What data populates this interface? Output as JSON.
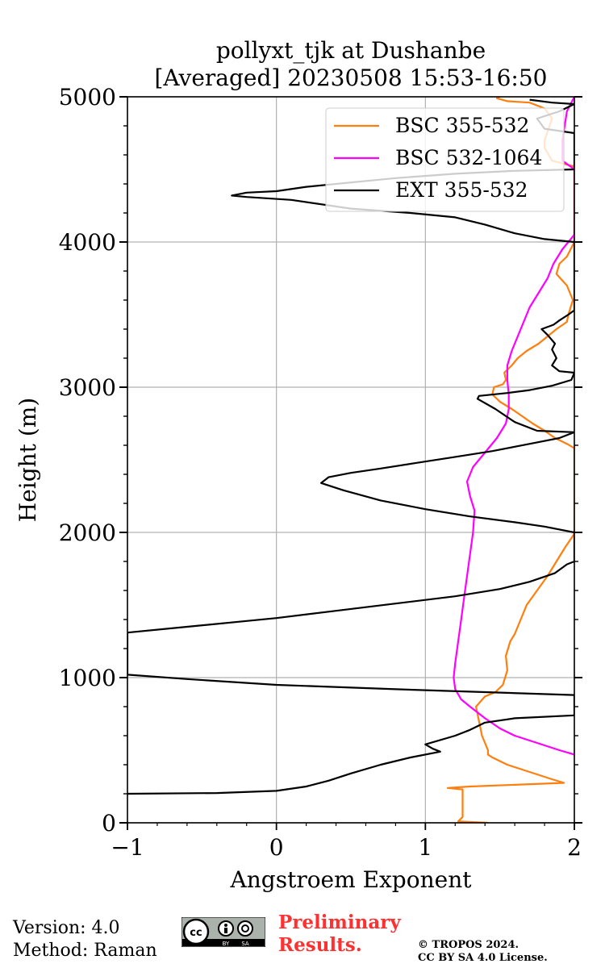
{
  "colors": {
    "bsc_355_532": "#ff7f0e",
    "bsc_532_1064": "#ff00ff",
    "ext_355_532": "#000000",
    "grid": "#b0b0b0",
    "preliminary": "#ff3030"
  },
  "footer": {
    "version": "Version: 4.0",
    "method": "Method: Raman",
    "preliminary_line1": "Preliminary",
    "preliminary_line2": "Results.",
    "copyright_line1": "© TROPOS 2024.",
    "copyright_line2": "CC BY SA 4.0 License.",
    "license_badge": {
      "cc": "cc",
      "by": "BY",
      "sa": "SA"
    }
  },
  "chart_data": {
    "type": "line",
    "title_line1": "pollyxt_tjk at Dushanbe",
    "title_line2": "[Averaged] 20230508 15:53-16:50",
    "xlabel": "Angstroem Exponent",
    "ylabel": "Height (m)",
    "xlim": [
      -1,
      2
    ],
    "ylim": [
      0,
      5000
    ],
    "xticks": [
      -1,
      0,
      1,
      2
    ],
    "xtick_labels": [
      "−1",
      "0",
      "1",
      "2"
    ],
    "yticks": [
      0,
      1000,
      2000,
      3000,
      4000,
      5000
    ],
    "ytick_labels": [
      "0",
      "1000",
      "2000",
      "3000",
      "4000",
      "5000"
    ],
    "grid": true,
    "legend_position": "top-right",
    "series": [
      {
        "name": "BSC 355-532",
        "color_key": "bsc_355_532",
        "points": [
          [
            1.42,
            0
          ],
          [
            1.22,
            10
          ],
          [
            1.25,
            40
          ],
          [
            1.25,
            130
          ],
          [
            1.25,
            230
          ],
          [
            1.15,
            240
          ],
          [
            1.3,
            250
          ],
          [
            1.93,
            275
          ],
          [
            1.85,
            300
          ],
          [
            1.7,
            350
          ],
          [
            1.55,
            400
          ],
          [
            1.45,
            450
          ],
          [
            1.42,
            470
          ],
          [
            1.42,
            500
          ],
          [
            1.4,
            550
          ],
          [
            1.38,
            600
          ],
          [
            1.36,
            700
          ],
          [
            1.34,
            800
          ],
          [
            1.4,
            870
          ],
          [
            1.47,
            900
          ],
          [
            1.52,
            950
          ],
          [
            1.55,
            1050
          ],
          [
            1.54,
            1150
          ],
          [
            1.57,
            1250
          ],
          [
            1.6,
            1300
          ],
          [
            1.64,
            1400
          ],
          [
            1.68,
            1500
          ],
          [
            1.75,
            1600
          ],
          [
            1.82,
            1700
          ],
          [
            1.88,
            1800
          ],
          [
            1.94,
            1900
          ],
          [
            2.0,
            1990
          ],
          [
            2.0,
            2580
          ],
          [
            1.95,
            2610
          ],
          [
            1.87,
            2650
          ],
          [
            1.8,
            2700
          ],
          [
            1.72,
            2750
          ],
          [
            1.65,
            2800
          ],
          [
            1.58,
            2850
          ],
          [
            1.5,
            2900
          ],
          [
            1.45,
            2950
          ],
          [
            1.46,
            3000
          ],
          [
            1.52,
            3020
          ],
          [
            1.54,
            3050
          ],
          [
            1.53,
            3100
          ],
          [
            1.58,
            3150
          ],
          [
            1.62,
            3200
          ],
          [
            1.68,
            3250
          ],
          [
            1.76,
            3300
          ],
          [
            1.82,
            3350
          ],
          [
            1.88,
            3400
          ],
          [
            1.95,
            3450
          ],
          [
            1.96,
            3500
          ],
          [
            1.99,
            3600
          ],
          [
            1.95,
            3700
          ],
          [
            1.88,
            3780
          ],
          [
            1.9,
            3850
          ],
          [
            1.95,
            3900
          ],
          [
            2.0,
            4000
          ],
          [
            2.0,
            4520
          ],
          [
            1.85,
            4560
          ],
          [
            1.8,
            4650
          ],
          [
            1.8,
            4700
          ],
          [
            1.85,
            4850
          ],
          [
            1.8,
            4920
          ],
          [
            1.7,
            4960
          ],
          [
            1.55,
            4970
          ],
          [
            1.48,
            4990
          ],
          [
            1.5,
            5000
          ]
        ]
      },
      {
        "name": "BSC 532-1064",
        "color_key": "bsc_532_1064",
        "points": [
          [
            2.0,
            470
          ],
          [
            1.9,
            500
          ],
          [
            1.75,
            550
          ],
          [
            1.6,
            600
          ],
          [
            1.5,
            650
          ],
          [
            1.4,
            720
          ],
          [
            1.3,
            800
          ],
          [
            1.24,
            850
          ],
          [
            1.2,
            920
          ],
          [
            1.19,
            1000
          ],
          [
            1.2,
            1100
          ],
          [
            1.22,
            1250
          ],
          [
            1.24,
            1400
          ],
          [
            1.26,
            1550
          ],
          [
            1.28,
            1700
          ],
          [
            1.3,
            1850
          ],
          [
            1.32,
            2000
          ],
          [
            1.33,
            2150
          ],
          [
            1.3,
            2250
          ],
          [
            1.28,
            2350
          ],
          [
            1.32,
            2450
          ],
          [
            1.4,
            2550
          ],
          [
            1.48,
            2650
          ],
          [
            1.54,
            2750
          ],
          [
            1.56,
            2850
          ],
          [
            1.56,
            2950
          ],
          [
            1.55,
            3050
          ],
          [
            1.55,
            3150
          ],
          [
            1.58,
            3250
          ],
          [
            1.62,
            3350
          ],
          [
            1.66,
            3450
          ],
          [
            1.7,
            3550
          ],
          [
            1.76,
            3650
          ],
          [
            1.82,
            3750
          ],
          [
            1.86,
            3850
          ],
          [
            1.92,
            3950
          ],
          [
            2.0,
            4050
          ],
          [
            2.0,
            4500
          ],
          [
            1.92,
            4560
          ],
          [
            1.92,
            4700
          ],
          [
            1.95,
            4900
          ],
          [
            2.0,
            5000
          ]
        ]
      },
      {
        "name": "EXT 355-532",
        "color_key": "ext_355_532",
        "points": [
          [
            -1.0,
            200
          ],
          [
            -0.4,
            205
          ],
          [
            0.0,
            220
          ],
          [
            0.2,
            250
          ],
          [
            0.35,
            290
          ],
          [
            0.5,
            340
          ],
          [
            0.7,
            400
          ],
          [
            0.9,
            450
          ],
          [
            1.1,
            490
          ],
          [
            1.05,
            510
          ],
          [
            1.0,
            540
          ],
          [
            1.2,
            600
          ],
          [
            1.3,
            640
          ],
          [
            1.4,
            690
          ],
          [
            1.6,
            720
          ],
          [
            2.0,
            740
          ],
          [
            2.0,
            880
          ],
          [
            1.4,
            900
          ],
          [
            0.8,
            920
          ],
          [
            0.0,
            950
          ],
          [
            -0.6,
            990
          ],
          [
            -1.0,
            1020
          ],
          [
            -1.0,
            1310
          ],
          [
            -0.6,
            1350
          ],
          [
            -0.2,
            1390
          ],
          [
            0.0,
            1410
          ],
          [
            0.4,
            1460
          ],
          [
            0.8,
            1510
          ],
          [
            1.2,
            1560
          ],
          [
            1.5,
            1610
          ],
          [
            1.7,
            1660
          ],
          [
            1.87,
            1720
          ],
          [
            1.95,
            1780
          ],
          [
            2.0,
            1800
          ],
          [
            2.0,
            2000
          ],
          [
            1.8,
            2040
          ],
          [
            1.6,
            2070
          ],
          [
            1.3,
            2110
          ],
          [
            1.0,
            2160
          ],
          [
            0.7,
            2220
          ],
          [
            0.45,
            2290
          ],
          [
            0.3,
            2340
          ],
          [
            0.35,
            2380
          ],
          [
            0.5,
            2410
          ],
          [
            0.7,
            2440
          ],
          [
            0.95,
            2480
          ],
          [
            1.2,
            2520
          ],
          [
            1.45,
            2560
          ],
          [
            1.6,
            2590
          ],
          [
            1.75,
            2620
          ],
          [
            1.9,
            2650
          ],
          [
            2.0,
            2690
          ],
          [
            1.75,
            2700
          ],
          [
            1.6,
            2760
          ],
          [
            1.47,
            2850
          ],
          [
            1.35,
            2920
          ],
          [
            1.36,
            2940
          ],
          [
            1.55,
            2960
          ],
          [
            1.7,
            2980
          ],
          [
            1.85,
            3010
          ],
          [
            1.98,
            3050
          ],
          [
            2.0,
            3100
          ],
          [
            1.9,
            3110
          ],
          [
            1.85,
            3150
          ],
          [
            1.88,
            3200
          ],
          [
            1.85,
            3260
          ],
          [
            1.87,
            3300
          ],
          [
            1.82,
            3360
          ],
          [
            1.78,
            3400
          ],
          [
            1.86,
            3430
          ],
          [
            1.9,
            3460
          ],
          [
            1.96,
            3500
          ],
          [
            2.0,
            3530
          ],
          [
            2.0,
            4000
          ],
          [
            1.8,
            4020
          ],
          [
            1.6,
            4060
          ],
          [
            1.4,
            4120
          ],
          [
            1.2,
            4170
          ],
          [
            0.9,
            4200
          ],
          [
            0.5,
            4230
          ],
          [
            0.1,
            4290
          ],
          [
            -0.2,
            4310
          ],
          [
            -0.3,
            4320
          ],
          [
            -0.2,
            4340
          ],
          [
            0.0,
            4350
          ],
          [
            0.2,
            4380
          ],
          [
            0.5,
            4410
          ],
          [
            0.8,
            4440
          ],
          [
            1.2,
            4470
          ],
          [
            1.6,
            4490
          ],
          [
            2.0,
            4500
          ],
          [
            2.0,
            4750
          ],
          [
            1.8,
            4780
          ],
          [
            1.75,
            4850
          ],
          [
            1.9,
            4900
          ],
          [
            2.0,
            4950
          ],
          [
            1.85,
            4960
          ],
          [
            1.7,
            4980
          ]
        ]
      }
    ]
  }
}
